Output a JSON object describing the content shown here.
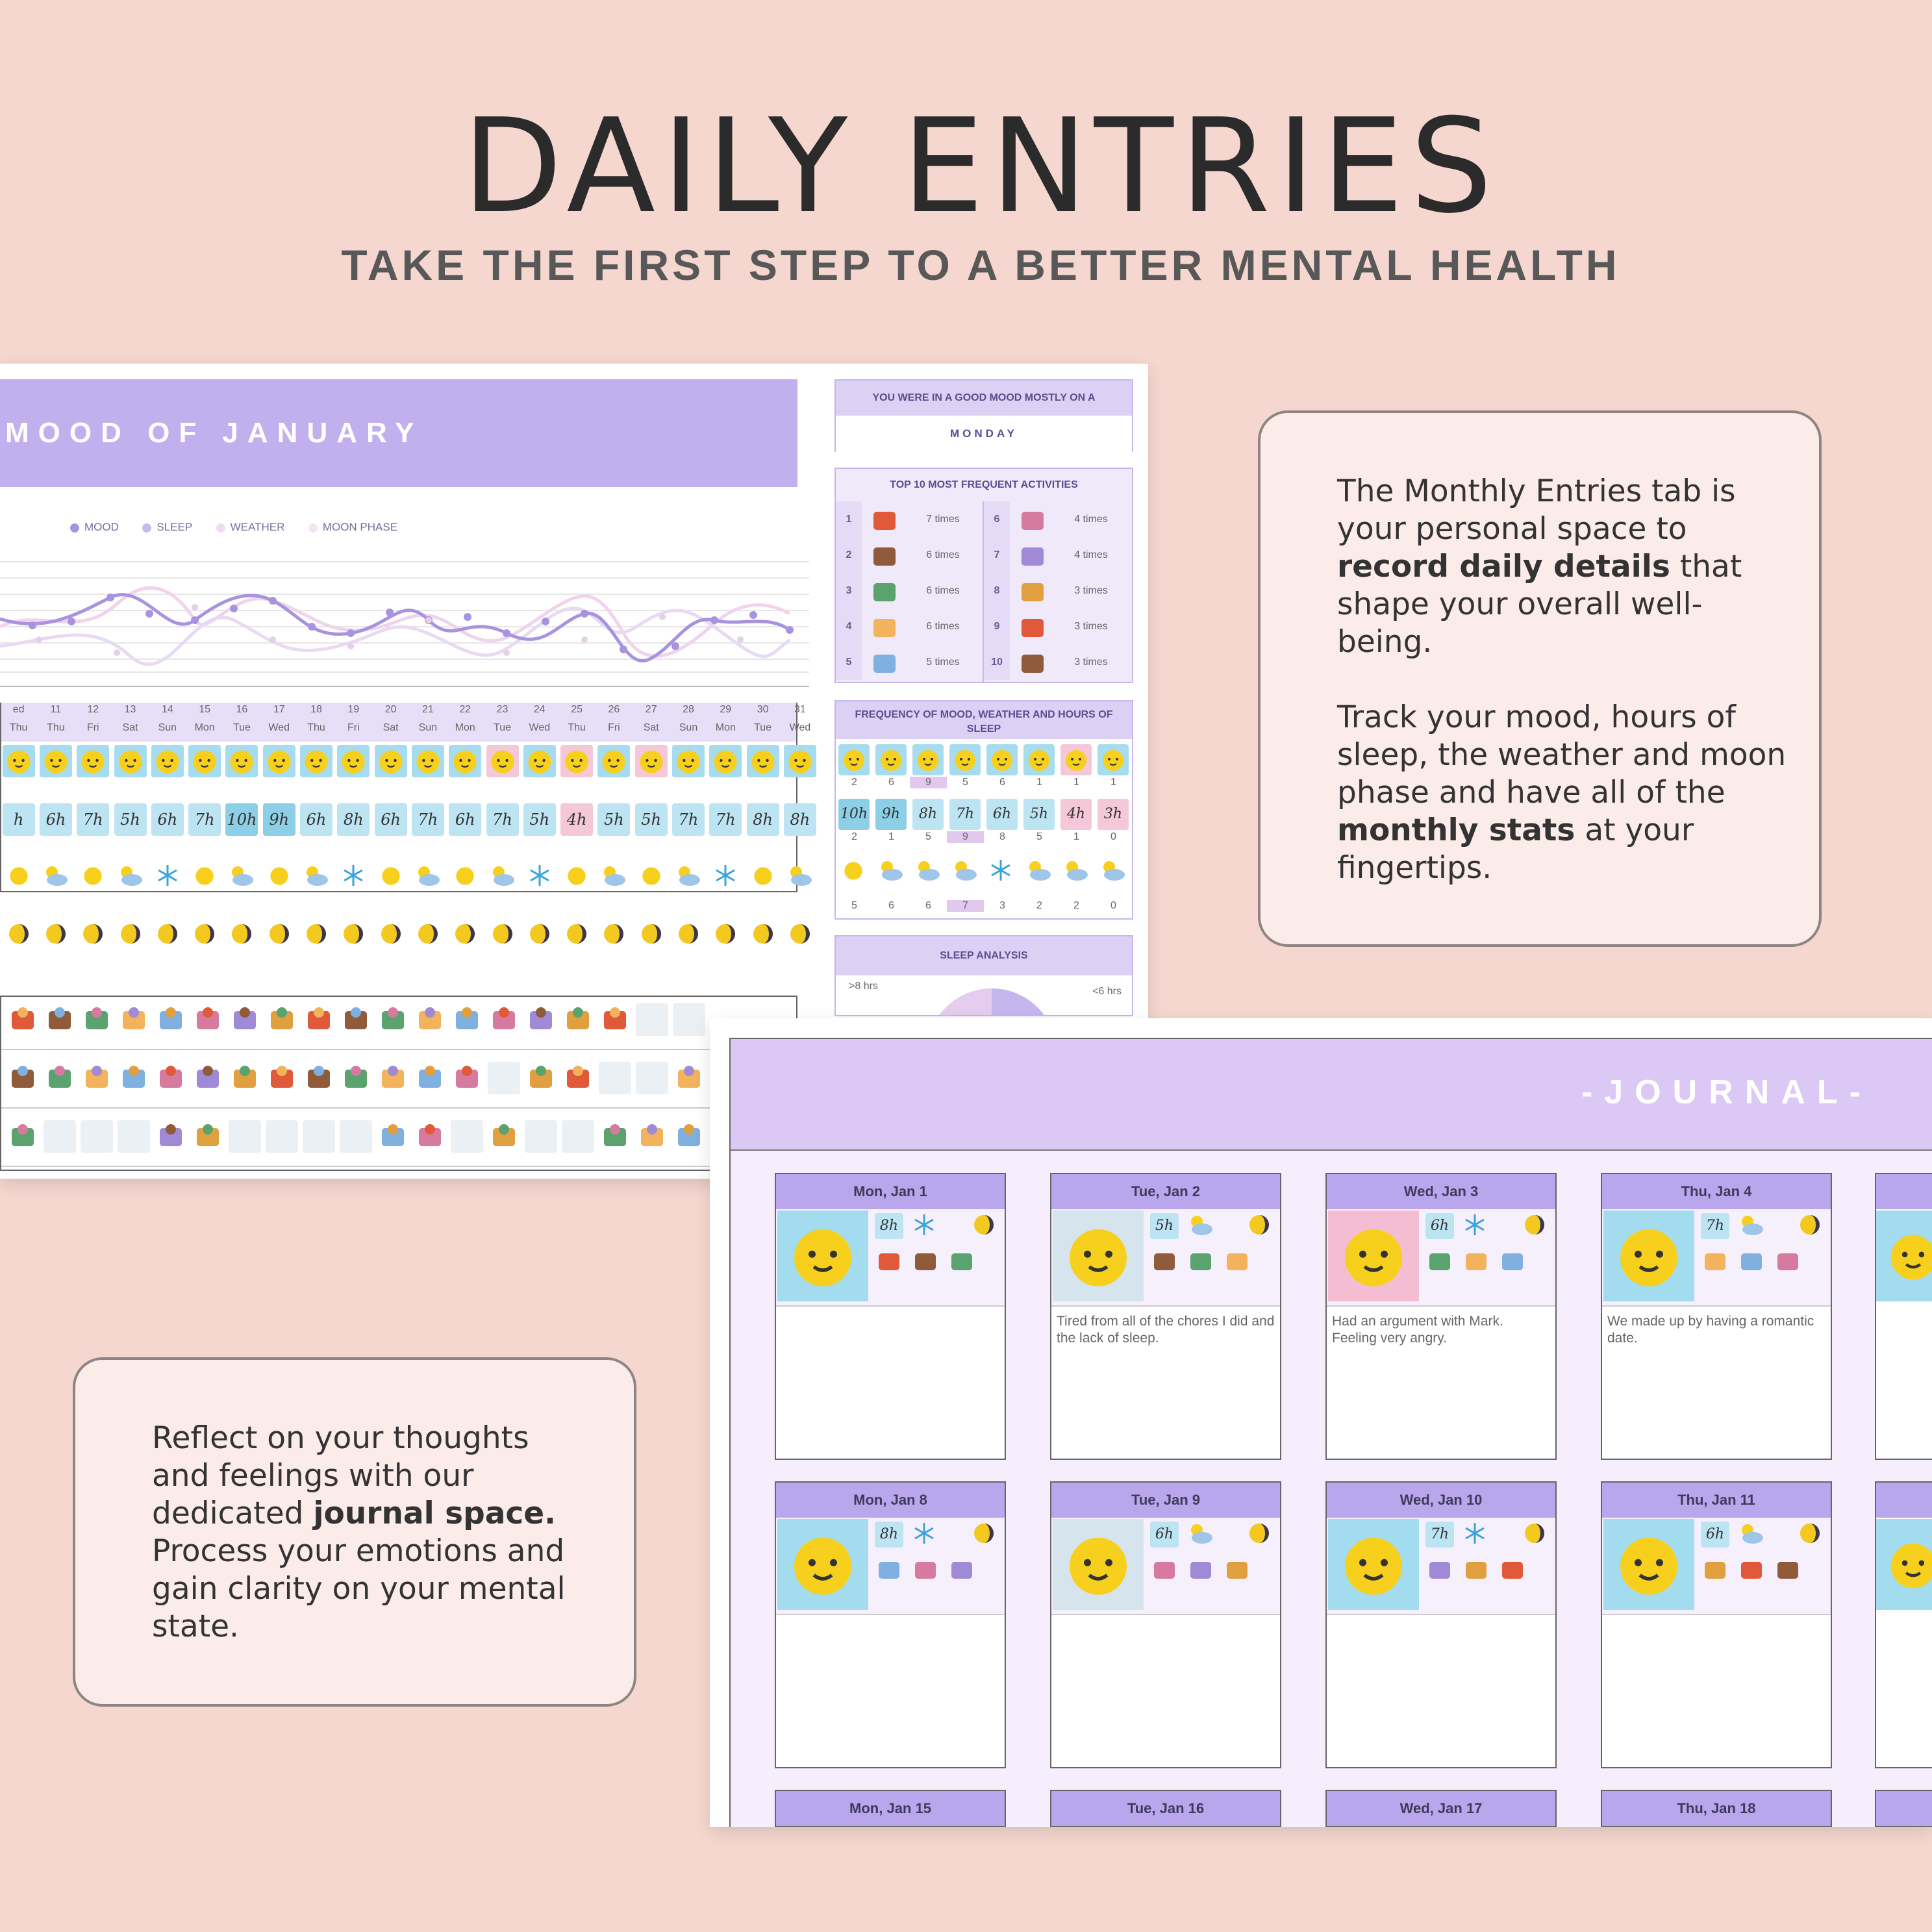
{
  "header": {
    "title": "DAILY ENTRIES",
    "subtitle": "TAKE THE FIRST STEP TO A BETTER MENTAL HEALTH"
  },
  "callout_right": {
    "p1_before": "The Monthly Entries tab is your personal space to ",
    "p1_bold": "record daily details",
    "p1_after": " that shape your overall well-being.",
    "p2_before": "Track your mood, hours of sleep, the weather and moon phase and have all of the ",
    "p2_bold": "monthly stats",
    "p2_after": " at your fingertips."
  },
  "callout_left": {
    "before": "Reflect on your thoughts and feelings with our dedicated ",
    "bold": "journal space.",
    "after": " Process your emotions and gain clarity on your mental state."
  },
  "mood_sheet": {
    "title": "MOOD OF JANUARY",
    "legend": [
      "MOOD",
      "SLEEP",
      "WEATHER",
      "MOON PHASE"
    ],
    "days": [
      "ed",
      "11",
      "12",
      "13",
      "14",
      "15",
      "16",
      "17",
      "18",
      "19",
      "20",
      "21",
      "22",
      "23",
      "24",
      "25",
      "26",
      "27",
      "28",
      "29",
      "30",
      "31"
    ],
    "weekdays": [
      "Thu",
      "Thu",
      "Fri",
      "Sat",
      "Sun",
      "Mon",
      "Tue",
      "Wed",
      "Thu",
      "Fri",
      "Sat",
      "Sun",
      "Mon",
      "Tue",
      "Wed",
      "Thu",
      "Fri",
      "Sat",
      "Sun",
      "Mon",
      "Tue",
      "Wed"
    ],
    "sleep": [
      "h",
      "6h",
      "7h",
      "5h",
      "6h",
      "7h",
      "10h",
      "9h",
      "6h",
      "8h",
      "6h",
      "7h",
      "6h",
      "7h",
      "5h",
      "4h",
      "5h",
      "5h",
      "7h",
      "7h",
      "8h",
      "8h"
    ]
  },
  "stats": {
    "good_mood_title": "YOU WERE IN A GOOD MOOD MOSTLY ON A",
    "good_mood_day": "MONDAY",
    "top10_title": "TOP 10 MOST FREQUENT ACTIVITIES",
    "top10": [
      {
        "rank": "1",
        "count": "7 times"
      },
      {
        "rank": "2",
        "count": "6 times"
      },
      {
        "rank": "3",
        "count": "6 times"
      },
      {
        "rank": "4",
        "count": "6 times"
      },
      {
        "rank": "5",
        "count": "5 times"
      },
      {
        "rank": "6",
        "count": "4 times"
      },
      {
        "rank": "7",
        "count": "4 times"
      },
      {
        "rank": "8",
        "count": "3 times"
      },
      {
        "rank": "9",
        "count": "3 times"
      },
      {
        "rank": "10",
        "count": "3 times"
      }
    ],
    "freq_title": "FREQUENCY OF MOOD, WEATHER AND HOURS OF SLEEP",
    "mood_counts": [
      "2",
      "6",
      "9",
      "5",
      "6",
      "1",
      "1",
      "1"
    ],
    "sleep_hours": [
      "10h",
      "9h",
      "8h",
      "7h",
      "6h",
      "5h",
      "4h",
      "3h"
    ],
    "sleep_counts": [
      "2",
      "1",
      "5",
      "9",
      "8",
      "5",
      "1",
      "0"
    ],
    "weather_counts": [
      "5",
      "6",
      "6",
      "7",
      "3",
      "2",
      "2",
      "0"
    ],
    "sleep_analysis_title": "SLEEP ANALYSIS",
    "sa_label1": ">8 hrs",
    "sa_label2": "<6 hrs"
  },
  "journal": {
    "title": "-JOURNAL-",
    "cards": [
      {
        "date": "Mon, Jan 1",
        "hours": "8h",
        "text": ""
      },
      {
        "date": "Tue, Jan 2",
        "hours": "5h",
        "text": "Tired from all of the chores I did and the lack of sleep."
      },
      {
        "date": "Wed, Jan 3",
        "hours": "6h",
        "text": "Had an argument with Mark. Feeling very angry."
      },
      {
        "date": "Thu, Jan 4",
        "hours": "7h",
        "text": "We made up by having a romantic date."
      },
      {
        "date": "Mon, Jan 8",
        "hours": "8h",
        "text": ""
      },
      {
        "date": "Tue, Jan 9",
        "hours": "6h",
        "text": ""
      },
      {
        "date": "Wed, Jan 10",
        "hours": "7h",
        "text": ""
      },
      {
        "date": "Thu, Jan 11",
        "hours": "6h",
        "text": ""
      },
      {
        "date": "Mon, Jan 15",
        "hours": "",
        "text": ""
      },
      {
        "date": "Tue, Jan 16",
        "hours": "",
        "text": ""
      },
      {
        "date": "Wed, Jan 17",
        "hours": "",
        "text": ""
      },
      {
        "date": "Thu, Jan 18",
        "hours": "",
        "text": ""
      }
    ]
  },
  "colors": {
    "bg": "#f5d7cf",
    "purple": "#c1b0ed",
    "lavender": "#efe9fa",
    "blue_tile": "#a3dcef",
    "pink_tile": "#f4bdd2",
    "sun": "#f7cf1d"
  }
}
